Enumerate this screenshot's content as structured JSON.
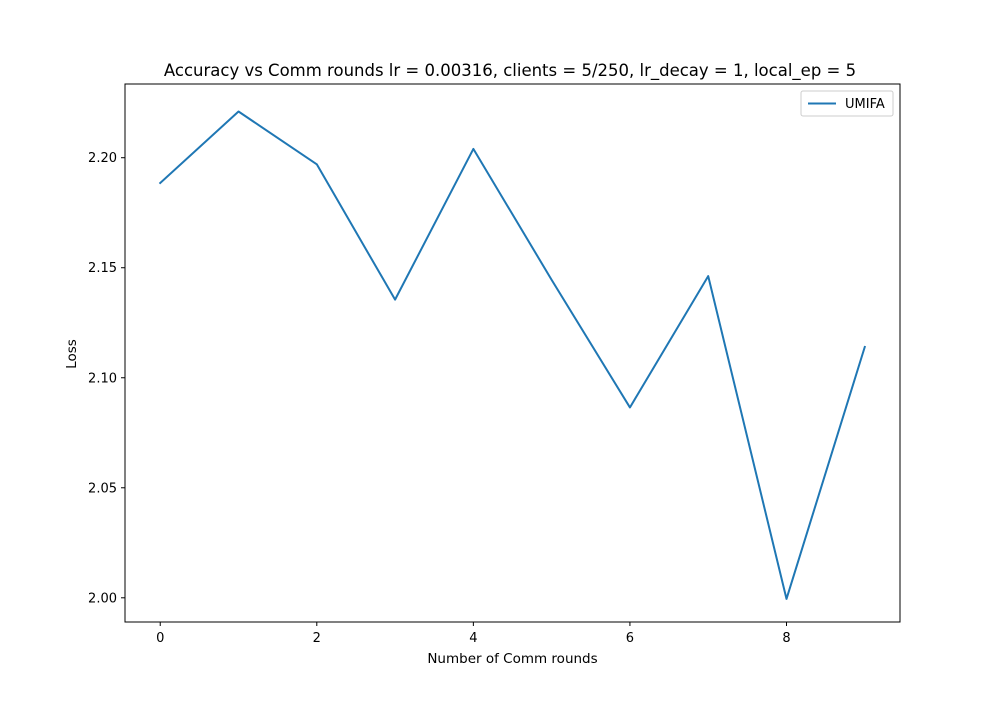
{
  "chart_data": {
    "type": "line",
    "title": "Accuracy vs Comm rounds lr = 0.00316, clients = 5/250, lr_decay = 1, local_ep = 5",
    "xlabel": "Number of Comm rounds",
    "ylabel": "Loss",
    "x": [
      0,
      1,
      2,
      3,
      4,
      5,
      6,
      7,
      8,
      9
    ],
    "series": [
      {
        "name": "UMIFA",
        "color": "#1f77b4",
        "values": [
          2.1885,
          2.221,
          2.197,
          2.1355,
          2.204,
          2.1445,
          2.0865,
          2.1462,
          1.9995,
          2.114
        ]
      }
    ],
    "xlim": [
      -0.45,
      9.45
    ],
    "ylim": [
      1.989,
      2.2335
    ],
    "xticks": [
      0,
      2,
      4,
      6,
      8
    ],
    "xtick_labels": [
      "0",
      "2",
      "4",
      "6",
      "8"
    ],
    "yticks": [
      2.0,
      2.05,
      2.1,
      2.15,
      2.2
    ],
    "ytick_labels": [
      "2.00",
      "2.05",
      "2.10",
      "2.15",
      "2.20"
    ],
    "grid": false,
    "legend_position": "top-right"
  }
}
